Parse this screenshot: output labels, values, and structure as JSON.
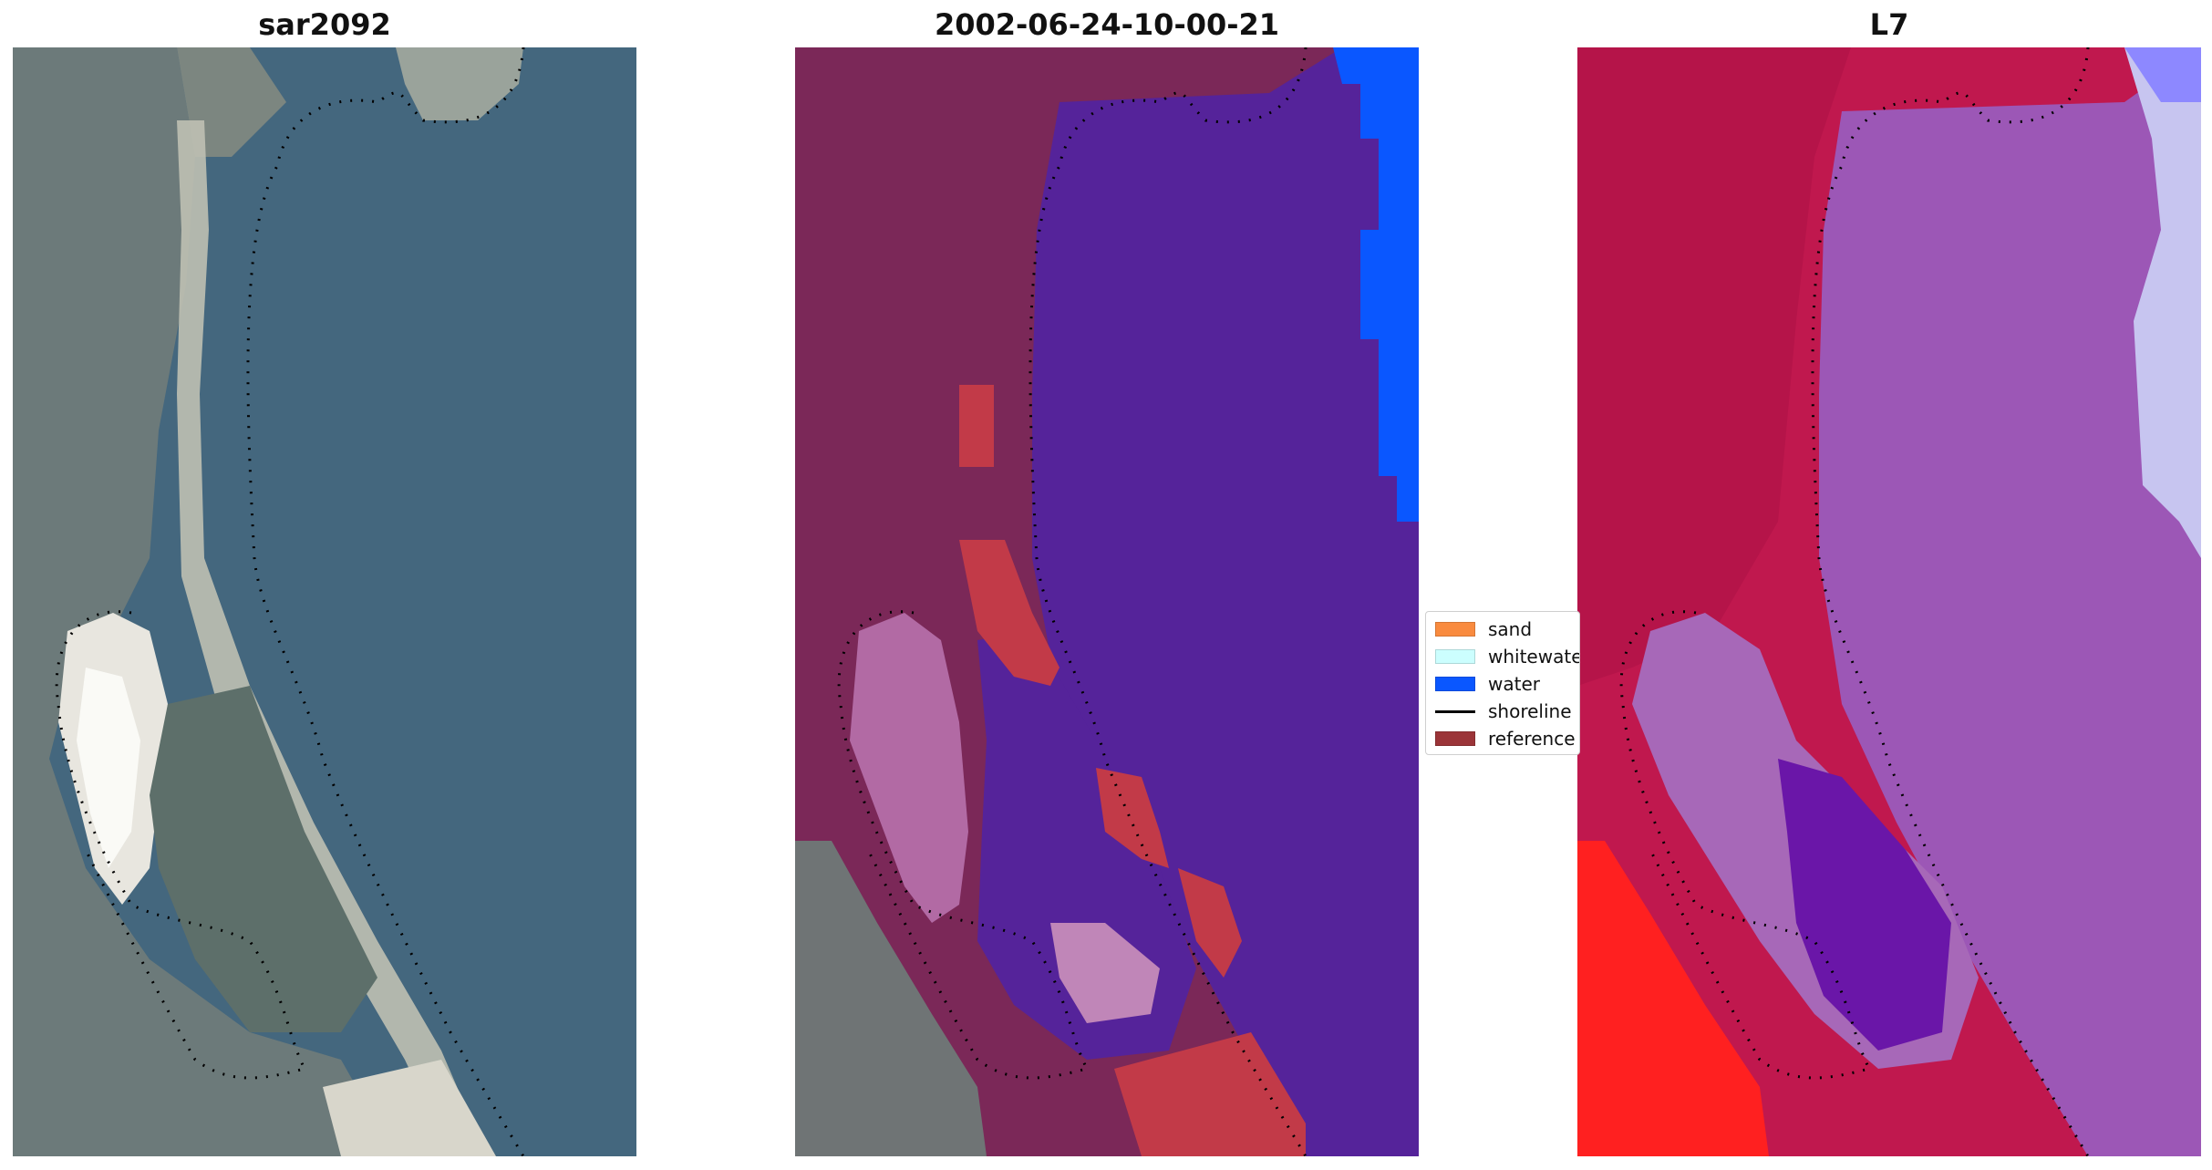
{
  "panels": {
    "left_title": "sar2092",
    "middle_title": "2002-06-24-10-00-21",
    "right_title": "L7"
  },
  "legend": {
    "items": [
      {
        "label": "sand",
        "color": "#f98b3f",
        "kind": "patch"
      },
      {
        "label": "whitewater",
        "color": "#ccfefe",
        "kind": "patch"
      },
      {
        "label": "water",
        "color": "#0a57ff",
        "kind": "patch"
      },
      {
        "label": "shoreline",
        "color": "#000000",
        "kind": "line"
      },
      {
        "label": "reference",
        "color": "#9b3438",
        "kind": "patch"
      }
    ]
  },
  "colors": {
    "sea_rgb": "#3f6681",
    "land_rgb": "#6d7c7d",
    "sand_rgb": "#d9d6cc",
    "land_class": "#7b2858",
    "water_class": "#55239a",
    "water_blue": "#0a57ff",
    "sand_class_pink": "#b26aa4",
    "reference_red": "#c23a48",
    "l7_red": "#c0184e",
    "l7_purple": "#9c57b6",
    "l7_bright_red": "#ff1a1a"
  }
}
